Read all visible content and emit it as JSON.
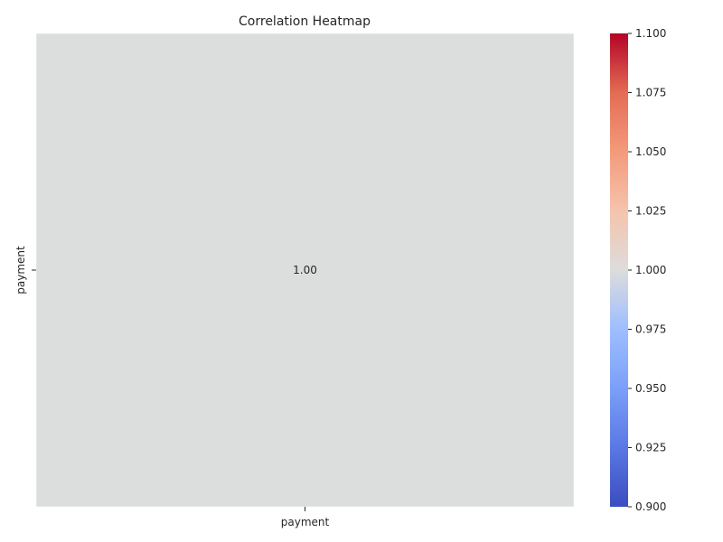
{
  "chart_data": {
    "type": "heatmap",
    "title": "Correlation Heatmap",
    "x_categories": [
      "payment"
    ],
    "y_categories": [
      "payment"
    ],
    "values": [
      [
        1.0
      ]
    ],
    "cell_labels": [
      [
        "1.00"
      ]
    ],
    "colormap": "coolwarm",
    "color_range": [
      0.9,
      1.1
    ],
    "colorbar_ticks": [
      "0.900",
      "0.925",
      "0.950",
      "0.975",
      "1.000",
      "1.025",
      "1.050",
      "1.075",
      "1.100"
    ],
    "colorbar_tick_values": [
      0.9,
      0.925,
      0.95,
      0.975,
      1.0,
      1.025,
      1.05,
      1.075,
      1.1
    ],
    "xlabel": "",
    "ylabel": "",
    "legend": "colorbar-right",
    "colors": {
      "low": "#3b4cc0",
      "mid": "#dddcdc",
      "high": "#b40426",
      "cell": "#dcdddd"
    }
  }
}
